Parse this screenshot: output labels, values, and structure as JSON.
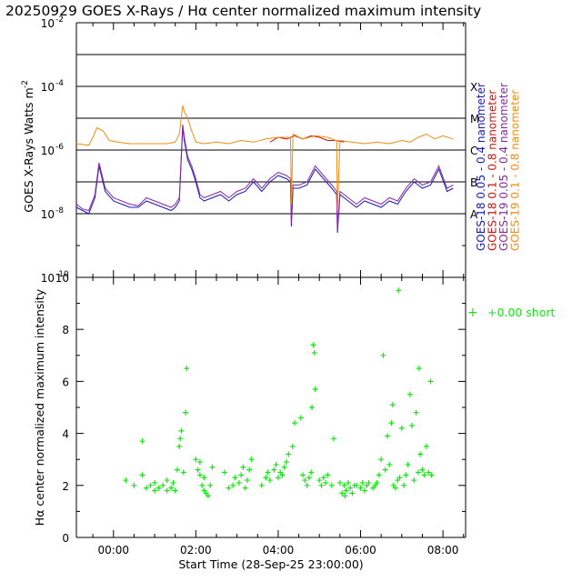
{
  "title": "20250929 GOES X-Rays / Hα center normalized maximum intensity",
  "colors": {
    "goes18_short": "#1a1ab4",
    "goes18_long": "#c81414",
    "goes19_short": "#8c28a0",
    "goes19_long": "#f08c14",
    "halpha": "#14e614",
    "axis": "#000000"
  },
  "chart_data": [
    {
      "type": "line",
      "title": "20250929 GOES X-Rays",
      "ylabel": "GOES X-Rays Watts m",
      "ylabel_sup": "-2",
      "yscale": "log",
      "ylim_exp": [
        -10,
        -2
      ],
      "yticks": [
        {
          "exp": -2,
          "label": "10",
          "sup": "-2"
        },
        {
          "exp": -4,
          "label": "10",
          "sup": "-4"
        },
        {
          "exp": -6,
          "label": "10",
          "sup": "-6"
        },
        {
          "exp": -8,
          "label": "10",
          "sup": "-8"
        },
        {
          "exp": -10,
          "label": "10",
          "sup": "-10"
        }
      ],
      "flare_levels": [
        {
          "exp": -7,
          "label": "B"
        },
        {
          "exp": -6,
          "label": "C"
        },
        {
          "exp": -5,
          "label": "M"
        },
        {
          "exp": -4,
          "label": "X"
        },
        {
          "exp": -8,
          "label": "A"
        }
      ],
      "hlines_exp": [
        -3,
        -4,
        -5,
        -6,
        -7,
        -8
      ],
      "series": [
        {
          "name": "GOES-18 0.05 - 0.4 nanometer",
          "color": "#1a1ab4",
          "x_hours": [
            -0.9,
            -0.75,
            -0.6,
            -0.45,
            -0.35,
            -0.2,
            0.0,
            0.2,
            0.4,
            0.6,
            0.8,
            1.0,
            1.2,
            1.4,
            1.5,
            1.6,
            1.68,
            1.72,
            1.8,
            1.9,
            2.0,
            2.1,
            2.2,
            2.4,
            2.6,
            2.8,
            3.0,
            3.2,
            3.4,
            3.6,
            3.8,
            4.0,
            4.2,
            4.3,
            4.32,
            4.36,
            4.5,
            4.7,
            4.9,
            5.1,
            5.3,
            5.42,
            5.44,
            5.5,
            5.7,
            5.9,
            6.1,
            6.3,
            6.5,
            6.7,
            6.9,
            7.1,
            7.3,
            7.5,
            7.7,
            7.9,
            8.1,
            8.25
          ],
          "log_values": [
            -7.8,
            -7.9,
            -8.0,
            -7.5,
            -6.5,
            -7.3,
            -7.6,
            -7.7,
            -7.8,
            -7.8,
            -7.6,
            -7.7,
            -7.8,
            -7.9,
            -7.8,
            -7.6,
            -5.3,
            -5.7,
            -6.3,
            -6.6,
            -7.0,
            -7.5,
            -7.6,
            -7.5,
            -7.4,
            -7.6,
            -7.4,
            -7.3,
            -7.0,
            -7.3,
            -7.0,
            -6.8,
            -6.9,
            -7.0,
            -8.4,
            -7.2,
            -7.2,
            -7.1,
            -6.6,
            -6.9,
            -7.2,
            -7.4,
            -8.6,
            -7.4,
            -7.6,
            -7.8,
            -7.6,
            -7.7,
            -7.8,
            -7.6,
            -7.7,
            -7.3,
            -7.0,
            -7.2,
            -7.1,
            -6.6,
            -7.3,
            -7.2
          ]
        },
        {
          "name": "GOES-18 0.1 - 0.8 nanometer",
          "color": "#c81414",
          "x_hours": [
            3.8,
            4.0,
            4.2,
            4.4,
            4.6,
            4.8,
            5.0,
            5.2,
            5.4,
            5.6
          ],
          "log_values": [
            -5.75,
            -5.6,
            -5.65,
            -5.55,
            -5.65,
            -5.55,
            -5.6,
            -5.7,
            -5.7,
            -5.75
          ]
        },
        {
          "name": "GOES-19 0.05 - 0.4 nanometer",
          "color": "#8c28a0",
          "x_hours": [
            -0.9,
            -0.75,
            -0.6,
            -0.45,
            -0.35,
            -0.2,
            0.0,
            0.2,
            0.4,
            0.6,
            0.8,
            1.0,
            1.2,
            1.4,
            1.5,
            1.6,
            1.68,
            1.72,
            1.8,
            1.9,
            2.0,
            2.1,
            2.2,
            2.4,
            2.6,
            2.8,
            3.0,
            3.2,
            3.4,
            3.6,
            3.8,
            4.0,
            4.2,
            4.3,
            4.32,
            4.36,
            4.5,
            4.7,
            4.9,
            5.1,
            5.3,
            5.42,
            5.44,
            5.5,
            5.7,
            5.9,
            6.1,
            6.3,
            6.5,
            6.7,
            6.9,
            7.1,
            7.3,
            7.5,
            7.7,
            7.9,
            8.1,
            8.25
          ],
          "log_values": [
            -7.7,
            -7.85,
            -7.9,
            -7.4,
            -6.4,
            -7.2,
            -7.5,
            -7.6,
            -7.7,
            -7.75,
            -7.5,
            -7.6,
            -7.7,
            -7.8,
            -7.7,
            -7.5,
            -5.2,
            -5.6,
            -6.2,
            -6.5,
            -6.9,
            -7.4,
            -7.5,
            -7.4,
            -7.3,
            -7.5,
            -7.3,
            -7.2,
            -6.9,
            -7.2,
            -6.9,
            -6.7,
            -6.8,
            -6.9,
            -8.3,
            -7.1,
            -7.1,
            -7.0,
            -6.5,
            -6.8,
            -7.1,
            -7.3,
            -8.5,
            -7.3,
            -7.5,
            -7.7,
            -7.5,
            -7.6,
            -7.7,
            -7.5,
            -7.6,
            -7.2,
            -6.9,
            -7.1,
            -7.0,
            -6.5,
            -7.2,
            -7.1
          ]
        },
        {
          "name": "GOES-19 0.1 - 0.8 nanometer",
          "color": "#f08c14",
          "x_hours": [
            -0.9,
            -0.6,
            -0.5,
            -0.4,
            -0.25,
            -0.1,
            0.1,
            0.4,
            0.7,
            1.0,
            1.3,
            1.5,
            1.6,
            1.68,
            1.72,
            1.8,
            1.9,
            2.0,
            2.2,
            2.5,
            2.8,
            3.1,
            3.4,
            3.7,
            4.0,
            4.25,
            4.3,
            4.32,
            4.36,
            4.6,
            4.9,
            5.2,
            5.4,
            5.42,
            5.44,
            5.5,
            5.8,
            6.1,
            6.4,
            6.7,
            7.0,
            7.2,
            7.4,
            7.6,
            7.8,
            8.0,
            8.25
          ],
          "log_values": [
            -5.8,
            -5.85,
            -5.6,
            -5.3,
            -5.4,
            -5.7,
            -5.75,
            -5.8,
            -5.8,
            -5.8,
            -5.8,
            -5.75,
            -5.5,
            -4.6,
            -4.8,
            -5.0,
            -5.4,
            -5.75,
            -5.8,
            -5.75,
            -5.8,
            -5.7,
            -5.75,
            -5.65,
            -5.6,
            -5.6,
            -5.65,
            -7.7,
            -5.5,
            -5.65,
            -5.55,
            -5.6,
            -5.7,
            -5.7,
            -7.9,
            -5.7,
            -5.75,
            -5.8,
            -5.75,
            -5.8,
            -5.7,
            -5.75,
            -5.6,
            -5.5,
            -5.65,
            -5.55,
            -5.65
          ]
        }
      ],
      "legend": [
        {
          "label": "GOES-18 0.05 - 0.4 nanometer",
          "color": "#1a1ab4"
        },
        {
          "label": "GOES-18 0.1 - 0.8 nanometer",
          "color": "#c81414"
        },
        {
          "label": "GOES-19 0.05 - 0.4 nanometer",
          "color": "#8c28a0"
        },
        {
          "label": "GOES-19 0.1 - 0.8 nanometer",
          "color": "#f08c14"
        }
      ]
    },
    {
      "type": "scatter",
      "title": "Hα center normalized maximum intensity",
      "ylabel": "Hα center normalized maximum intensity",
      "xlabel": "Start Time (28-Sep-25 23:00:00)",
      "xlim_hours": [
        -0.9,
        8.55
      ],
      "xticks": [
        {
          "hour": 0,
          "label": "00:00"
        },
        {
          "hour": 2,
          "label": "02:00"
        },
        {
          "hour": 4,
          "label": "04:00"
        },
        {
          "hour": 6,
          "label": "06:00"
        },
        {
          "hour": 8,
          "label": "08:00"
        }
      ],
      "ylim": [
        0,
        10
      ],
      "yticks": [
        0,
        2,
        4,
        6,
        8,
        10
      ],
      "legend": {
        "marker": "+",
        "label": "+0.00 short"
      },
      "marker_color": "#14e614",
      "points": [
        [
          0.3,
          2.2
        ],
        [
          0.5,
          2.0
        ],
        [
          0.7,
          2.4
        ],
        [
          0.7,
          3.7
        ],
        [
          0.8,
          1.9
        ],
        [
          0.9,
          2.0
        ],
        [
          1.0,
          1.8
        ],
        [
          1.0,
          2.1
        ],
        [
          1.1,
          1.9
        ],
        [
          1.2,
          2.0
        ],
        [
          1.3,
          1.8
        ],
        [
          1.3,
          2.2
        ],
        [
          1.4,
          1.9
        ],
        [
          1.45,
          2.1
        ],
        [
          1.5,
          1.8
        ],
        [
          1.55,
          2.6
        ],
        [
          1.6,
          3.5
        ],
        [
          1.62,
          3.8
        ],
        [
          1.65,
          4.1
        ],
        [
          1.7,
          2.5
        ],
        [
          1.75,
          4.8
        ],
        [
          1.78,
          6.5
        ],
        [
          2.0,
          3.0
        ],
        [
          2.05,
          2.6
        ],
        [
          2.1,
          2.4
        ],
        [
          2.1,
          2.9
        ],
        [
          2.15,
          2.0
        ],
        [
          2.2,
          1.8
        ],
        [
          2.2,
          2.3
        ],
        [
          2.25,
          1.7
        ],
        [
          2.3,
          1.6
        ],
        [
          2.35,
          2.0
        ],
        [
          2.4,
          2.7
        ],
        [
          2.7,
          2.5
        ],
        [
          2.8,
          1.9
        ],
        [
          2.9,
          2.0
        ],
        [
          2.95,
          2.3
        ],
        [
          3.05,
          2.1
        ],
        [
          3.1,
          2.4
        ],
        [
          3.15,
          2.7
        ],
        [
          3.2,
          1.9
        ],
        [
          3.25,
          2.2
        ],
        [
          3.3,
          2.6
        ],
        [
          3.35,
          3.0
        ],
        [
          3.6,
          2.0
        ],
        [
          3.7,
          2.3
        ],
        [
          3.75,
          2.5
        ],
        [
          3.8,
          2.2
        ],
        [
          3.9,
          2.6
        ],
        [
          3.95,
          2.8
        ],
        [
          4.0,
          2.3
        ],
        [
          4.05,
          2.5
        ],
        [
          4.1,
          2.4
        ],
        [
          4.15,
          2.7
        ],
        [
          4.2,
          2.9
        ],
        [
          4.25,
          3.2
        ],
        [
          4.35,
          3.5
        ],
        [
          4.4,
          4.4
        ],
        [
          4.55,
          4.6
        ],
        [
          4.6,
          2.4
        ],
        [
          4.65,
          2.2
        ],
        [
          4.7,
          2.0
        ],
        [
          4.75,
          2.3
        ],
        [
          4.8,
          2.5
        ],
        [
          4.82,
          5.0
        ],
        [
          4.85,
          7.4
        ],
        [
          4.88,
          7.1
        ],
        [
          4.9,
          5.7
        ],
        [
          5.0,
          2.2
        ],
        [
          5.05,
          2.0
        ],
        [
          5.1,
          2.3
        ],
        [
          5.15,
          2.1
        ],
        [
          5.2,
          2.4
        ],
        [
          5.3,
          2.0
        ],
        [
          5.35,
          3.8
        ],
        [
          5.5,
          2.1
        ],
        [
          5.55,
          1.7
        ],
        [
          5.6,
          2.0
        ],
        [
          5.62,
          1.6
        ],
        [
          5.65,
          1.8
        ],
        [
          5.7,
          2.1
        ],
        [
          5.75,
          1.9
        ],
        [
          5.8,
          1.7
        ],
        [
          5.85,
          2.0
        ],
        [
          5.9,
          2.0
        ],
        [
          6.0,
          1.9
        ],
        [
          6.05,
          2.1
        ],
        [
          6.1,
          1.8
        ],
        [
          6.15,
          2.0
        ],
        [
          6.2,
          2.1
        ],
        [
          6.3,
          1.9
        ],
        [
          6.35,
          2.0
        ],
        [
          6.4,
          2.1
        ],
        [
          6.45,
          2.4
        ],
        [
          6.5,
          3.0
        ],
        [
          6.55,
          7.0
        ],
        [
          6.6,
          2.6
        ],
        [
          6.65,
          3.9
        ],
        [
          6.7,
          2.8
        ],
        [
          6.75,
          4.4
        ],
        [
          6.78,
          5.1
        ],
        [
          6.8,
          2.0
        ],
        [
          6.85,
          1.9
        ],
        [
          6.9,
          2.2
        ],
        [
          6.92,
          9.5
        ],
        [
          6.95,
          2.3
        ],
        [
          7.0,
          4.2
        ],
        [
          7.05,
          2.0
        ],
        [
          7.1,
          2.4
        ],
        [
          7.15,
          2.8
        ],
        [
          7.2,
          5.5
        ],
        [
          7.25,
          4.3
        ],
        [
          7.3,
          2.2
        ],
        [
          7.35,
          4.8
        ],
        [
          7.4,
          2.5
        ],
        [
          7.42,
          6.5
        ],
        [
          7.45,
          3.2
        ],
        [
          7.5,
          2.6
        ],
        [
          7.55,
          2.4
        ],
        [
          7.6,
          3.5
        ],
        [
          7.65,
          2.5
        ],
        [
          7.7,
          6.0
        ],
        [
          7.72,
          2.4
        ]
      ]
    }
  ]
}
